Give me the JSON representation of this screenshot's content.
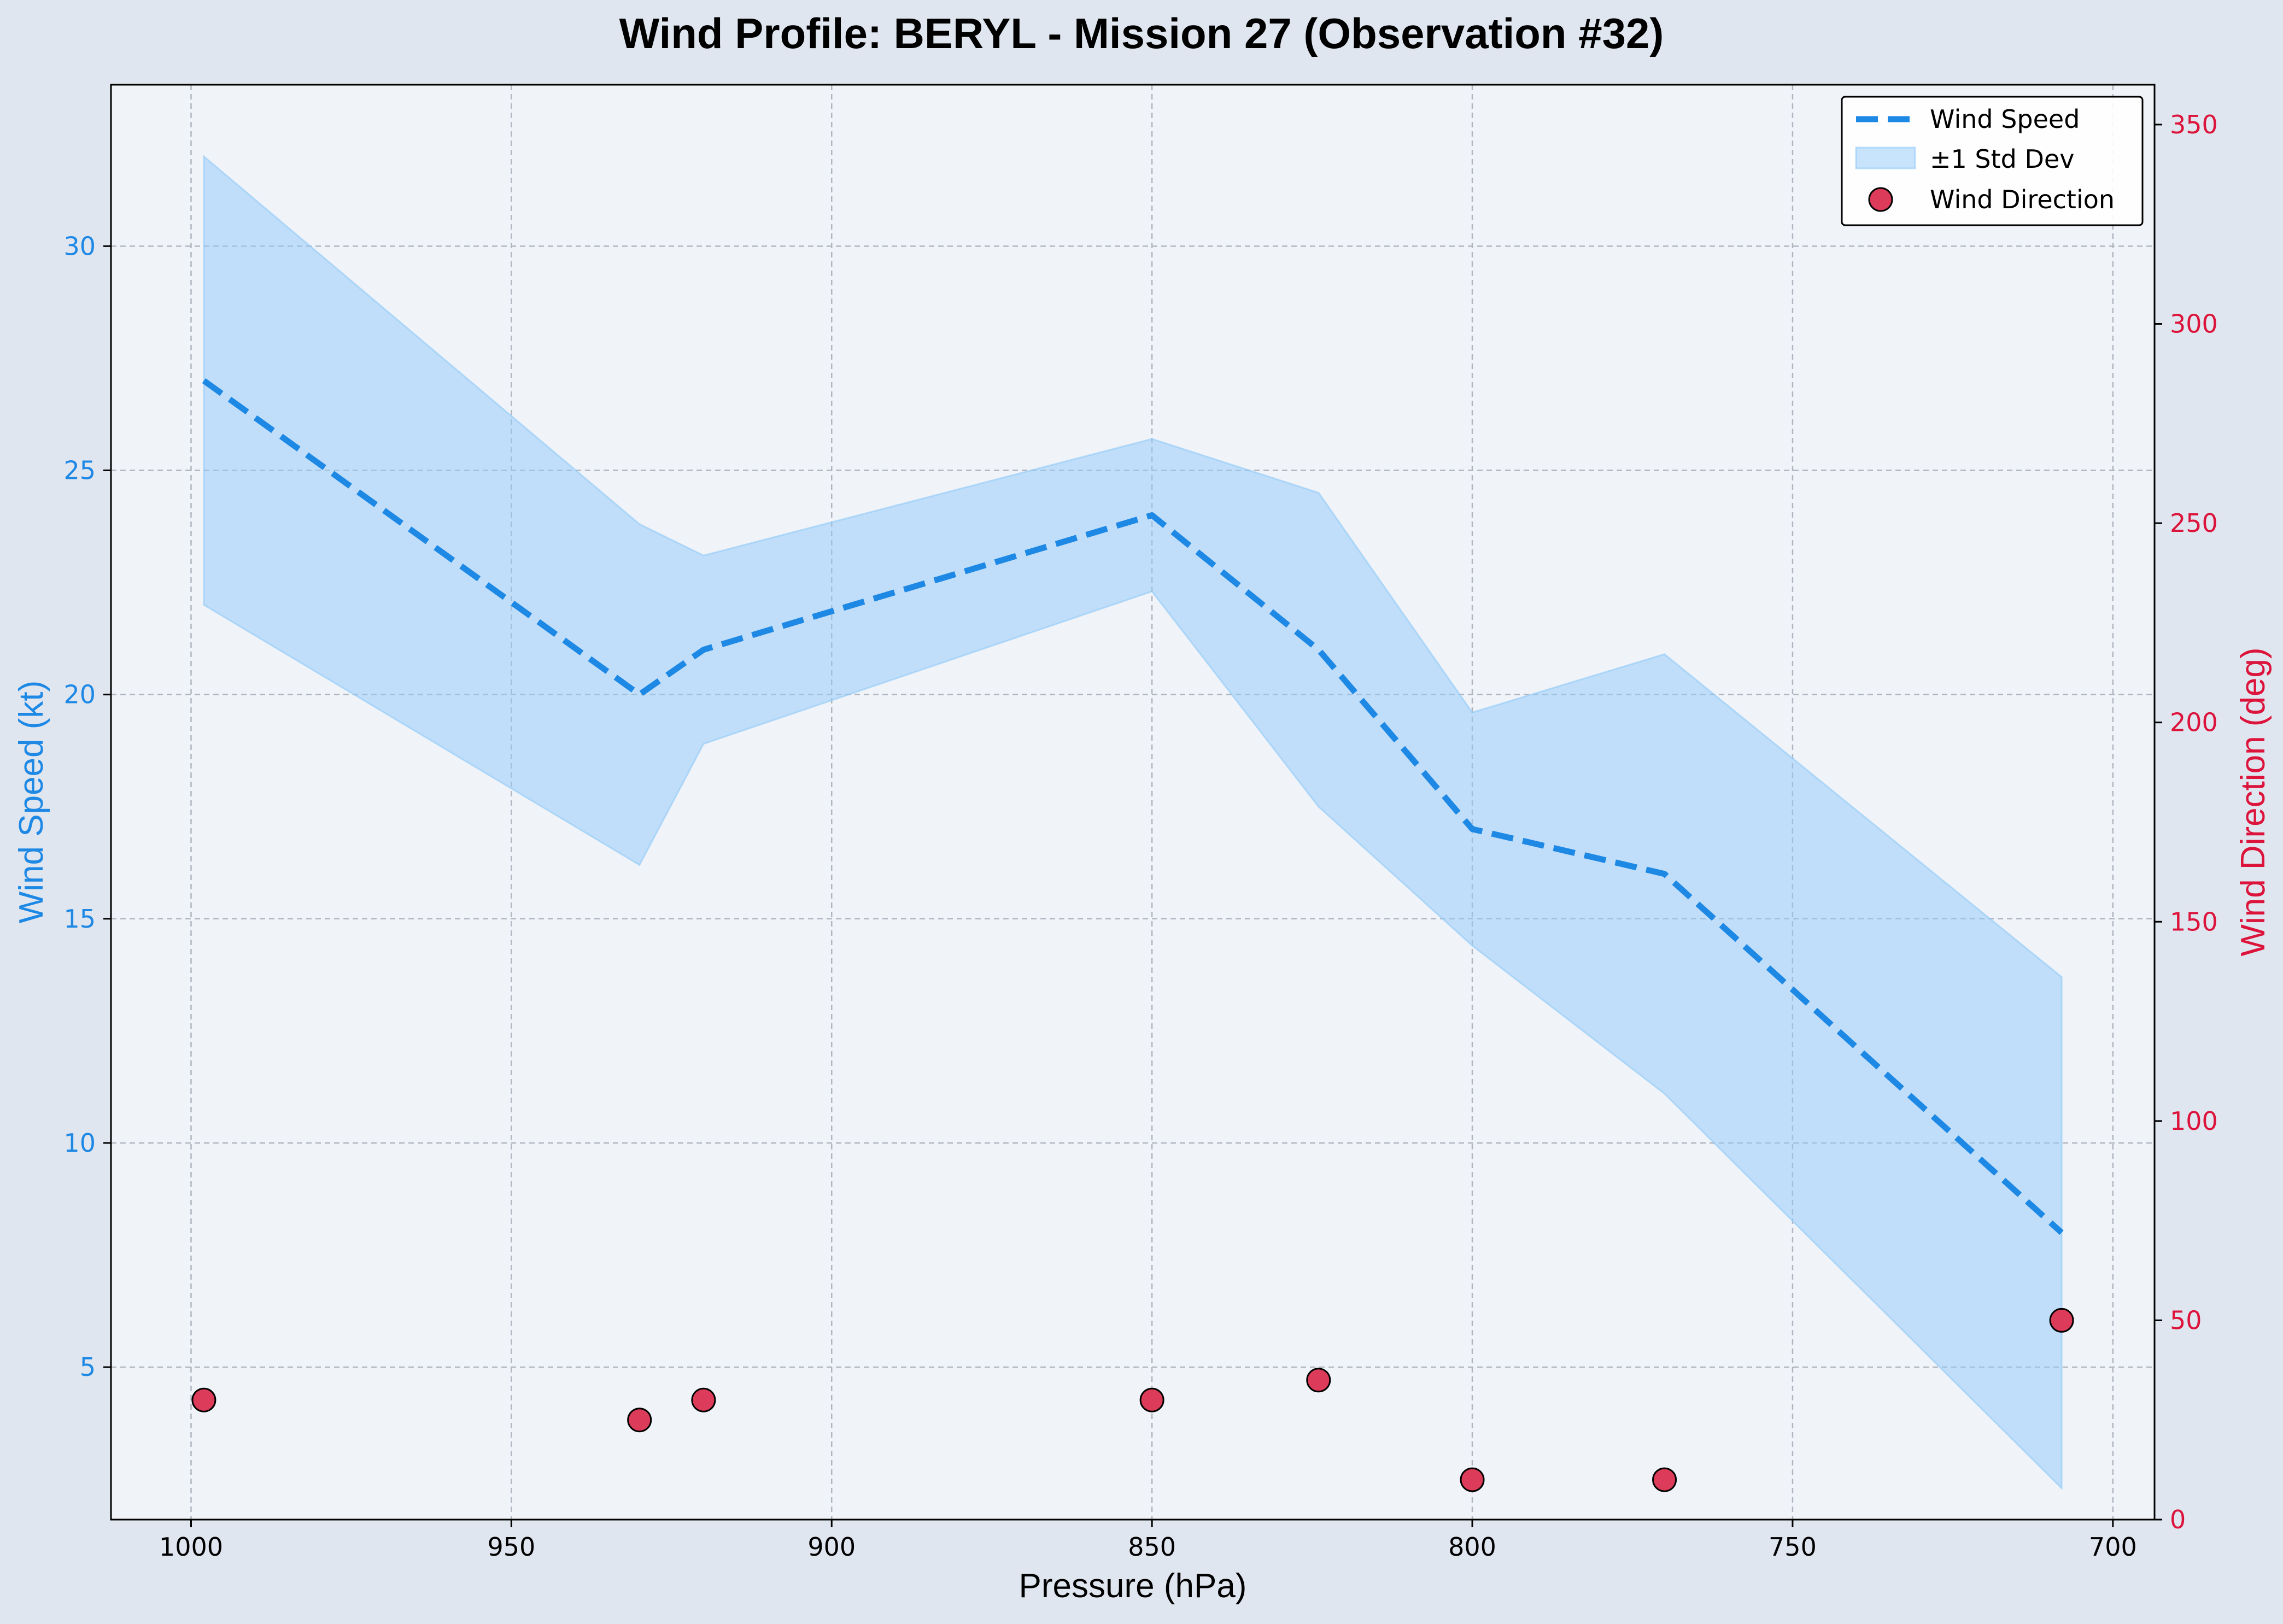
{
  "chart_data": {
    "type": "line",
    "title": "Wind Profile: BERYL - Mission 27 (Observation #32)",
    "xlabel": "Pressure (hPa)",
    "ylabel": "Wind Speed (kt)",
    "ylabel_right": "Wind Direction (deg)",
    "x_inverted": true,
    "xlim": [
      1012.5,
      693.5
    ],
    "ylim": [
      1.6,
      33.6
    ],
    "ylim_right": [
      0,
      360
    ],
    "x_ticks": [
      1000,
      950,
      900,
      850,
      800,
      750,
      700
    ],
    "y_ticks": [
      5,
      10,
      15,
      20,
      25,
      30
    ],
    "y_ticks_right": [
      0,
      50,
      100,
      150,
      200,
      250,
      300,
      350
    ],
    "grid": true,
    "legend_position": "top-right",
    "x": [
      998,
      930,
      920,
      850,
      824,
      800,
      770,
      708
    ],
    "series": [
      {
        "name": "Wind Speed",
        "kind": "line",
        "style": "dashed",
        "axis": "left",
        "color": "#1e88e5",
        "values": [
          27,
          20,
          21,
          24,
          21,
          17,
          16,
          8
        ]
      },
      {
        "name": "±1 Std Dev",
        "kind": "band",
        "axis": "left",
        "color": "#90caf9",
        "lower": [
          22.0,
          16.2,
          18.9,
          22.3,
          17.5,
          14.4,
          11.1,
          2.3
        ],
        "upper": [
          32.0,
          23.8,
          23.1,
          25.7,
          24.5,
          19.6,
          20.9,
          13.7
        ]
      },
      {
        "name": "Wind Direction",
        "kind": "scatter",
        "axis": "right",
        "color": "#dc3c5a",
        "values": [
          30,
          25,
          30,
          30,
          35,
          10,
          10,
          50
        ]
      }
    ]
  },
  "colors": {
    "figure_background": "#e0e6ef",
    "plot_background": "#f0f3f8",
    "speed_axis": "#1e88e5",
    "direction_axis": "#dc143c",
    "grid": "#b0b6bf"
  }
}
